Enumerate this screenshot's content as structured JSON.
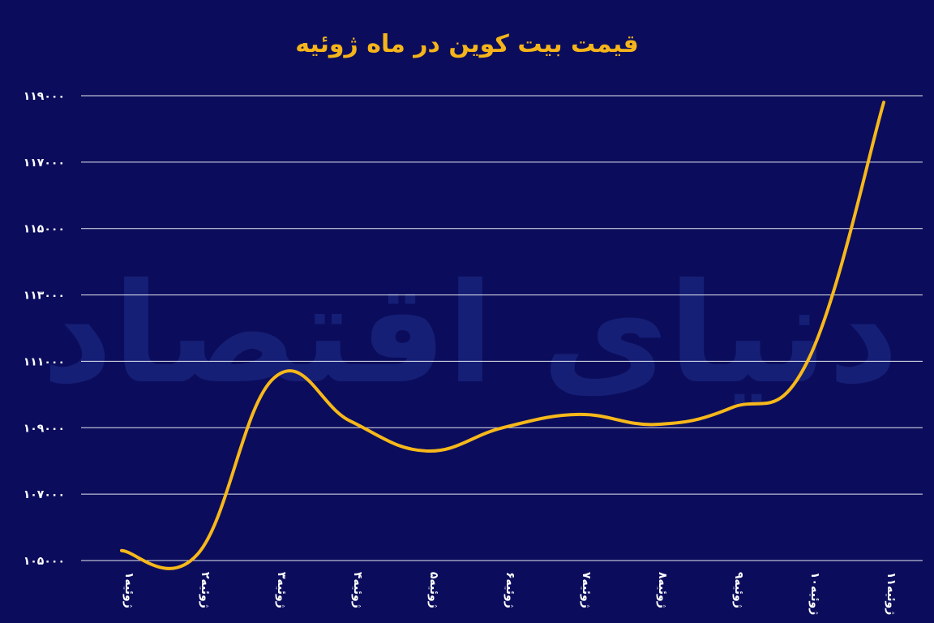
{
  "chart_data": {
    "type": "line",
    "title": "قیمت بیت کوین در ماه ژوئیه",
    "xlabel": "",
    "ylabel": "",
    "categories": [
      "۱ژوئیه",
      "۲ژوئیه",
      "۳ژوئیه",
      "۴ژوئیه",
      "۵ژوئیه",
      "۶ژوئیه",
      "۷ژوئیه",
      "۸ژوئیه",
      "۹ژوئیه",
      "۱۰ژوئیه",
      "۱۱ژوئیه"
    ],
    "series": [
      {
        "values": [
          105300,
          105200,
          110500,
          109200,
          108300,
          109000,
          109400,
          109100,
          109600,
          111000,
          118800
        ]
      }
    ],
    "yticks": [
      105000,
      107000,
      109000,
      111000,
      113000,
      115000,
      117000,
      119000
    ],
    "ytick_labels": [
      "۱۰۵۰۰۰",
      "۱۰۷۰۰۰",
      "۱۰۹۰۰۰",
      "۱۱۱۰۰۰",
      "۱۱۳۰۰۰",
      "۱۱۵۰۰۰",
      "۱۱۷۰۰۰",
      "۱۱۹۰۰۰"
    ],
    "ylim": [
      105000,
      119000
    ],
    "grid": true,
    "legend": "none",
    "colors": {
      "background": "#0b0d5c",
      "line": "#f7b81a",
      "title": "#f5b41a",
      "text": "#ffffff"
    }
  },
  "watermark": "دنیای اقتصاد"
}
